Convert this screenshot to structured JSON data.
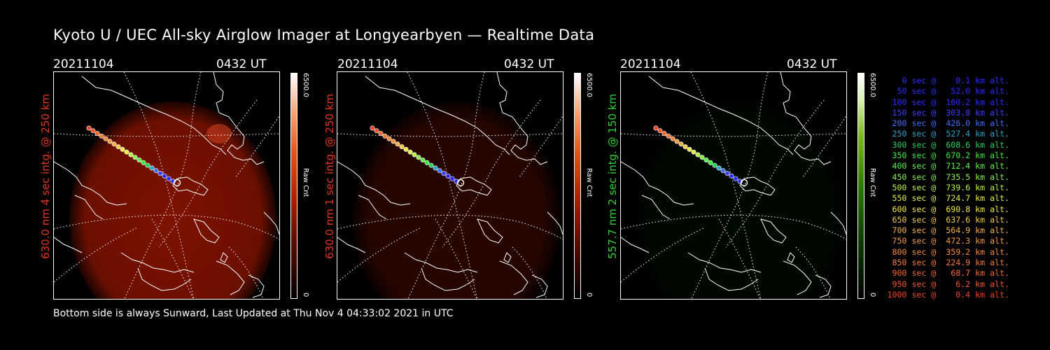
{
  "title": "Kyoto U / UEC All-sky Airglow Imager at Longyearbyen — Realtime Data",
  "footer": "Bottom side is always Sunward, Last Updated at Thu Nov  4 04:33:02 2021 in UTC",
  "panels": [
    {
      "date": "20211104",
      "time": "0432 UT",
      "side_label": "630.0 nm 4 sec intg. @ 250 km",
      "label_color": "#e0341e",
      "colorbar_max": "6500.0",
      "colorbar_min": "0",
      "colorbar_unit": "Raw Cnt",
      "colormap": "red",
      "glow_intensity": 0.9
    },
    {
      "date": "20211104",
      "time": "0432 UT",
      "side_label": "630.0 nm 1 sec intg. @ 250 km",
      "label_color": "#e0341e",
      "colorbar_max": "6500.0",
      "colorbar_min": "0",
      "colorbar_unit": "Raw Cnt",
      "colormap": "red",
      "glow_intensity": 0.3
    },
    {
      "date": "20211104",
      "time": "0432 UT",
      "side_label": "557.7 nm 2 sec intg. @ 150 km",
      "label_color": "#2fd12f",
      "colorbar_max": "6500.0",
      "colorbar_min": "0",
      "colorbar_unit": "Raw Cnt",
      "colormap": "green",
      "glow_intensity": 0.15
    }
  ],
  "trajectory_legend": [
    {
      "text": "0 sec @    0.1 km alt.",
      "color": "#2b2bff"
    },
    {
      "text": "50 sec @   52.0 km alt.",
      "color": "#2b2bff"
    },
    {
      "text": "100 sec @  160.2 km alt.",
      "color": "#2b2bff"
    },
    {
      "text": "150 sec @  303.8 km alt.",
      "color": "#3d3dff"
    },
    {
      "text": "200 sec @  426.0 km alt.",
      "color": "#3d6dff"
    },
    {
      "text": "250 sec @  527.4 km alt.",
      "color": "#2aa2c8"
    },
    {
      "text": "300 sec @  608.6 km alt.",
      "color": "#22d25a"
    },
    {
      "text": "350 sec @  670.2 km alt.",
      "color": "#3bea3b"
    },
    {
      "text": "400 sec @  712.4 km alt.",
      "color": "#5ef04a"
    },
    {
      "text": "450 sec @  735.5 km alt.",
      "color": "#86f24a"
    },
    {
      "text": "500 sec @  739.6 km alt.",
      "color": "#b8f24a"
    },
    {
      "text": "550 sec @  724.7 km alt.",
      "color": "#e0f04a"
    },
    {
      "text": "600 sec @  690.8 km alt.",
      "color": "#f4e64a"
    },
    {
      "text": "650 sec @  637.6 km alt.",
      "color": "#f4c84a"
    },
    {
      "text": "700 sec @  564.9 km alt.",
      "color": "#f4b04a"
    },
    {
      "text": "750 sec @  472.3 km alt.",
      "color": "#f49a42"
    },
    {
      "text": "800 sec @  359.2 km alt.",
      "color": "#f48a3a"
    },
    {
      "text": "850 sec @  224.9 km alt.",
      "color": "#f47a32"
    },
    {
      "text": "900 sec @   68.7 km alt.",
      "color": "#f4662c"
    },
    {
      "text": "950 sec @    6.2 km alt.",
      "color": "#f25428"
    },
    {
      "text": "1000 sec @    0.4 km alt.",
      "color": "#f04224"
    }
  ]
}
